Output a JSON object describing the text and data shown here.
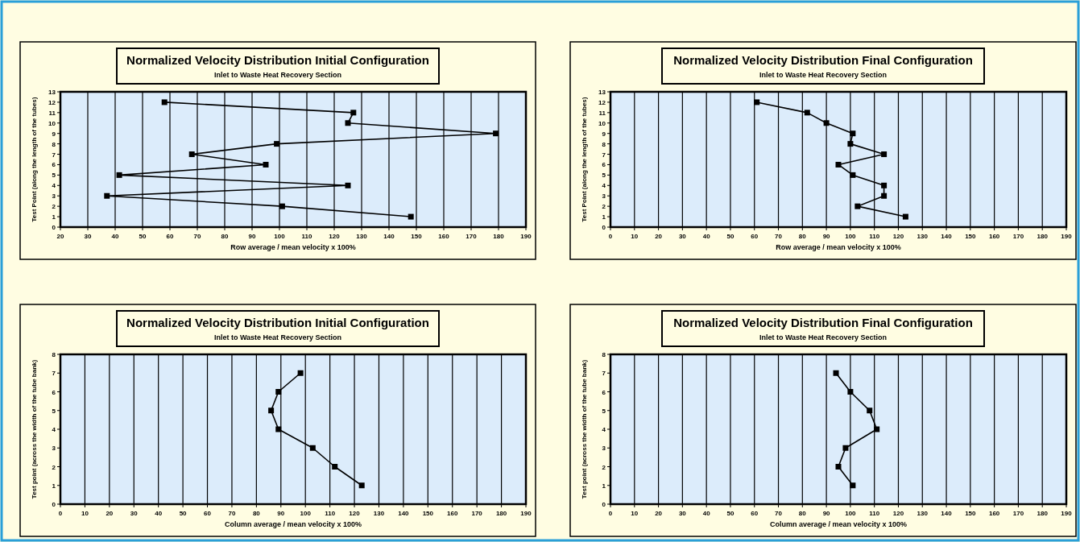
{
  "chart_data": [
    {
      "type": "line",
      "title": "Normalized Velocity Distribution Initial Configuration",
      "subtitle": "Inlet to Waste Heat Recovery Section",
      "xlabel": "Row average / mean velocity x 100%",
      "ylabel": "Test Point (along the length of the tubes)",
      "x": [
        58,
        127,
        125,
        179,
        99,
        68,
        95,
        41.5,
        125,
        37,
        101,
        148
      ],
      "series": [
        {
          "color": "#000000",
          "values": [
            12,
            11,
            10,
            9,
            8,
            7,
            6,
            5,
            4,
            3,
            2,
            1
          ]
        }
      ],
      "xlim": [
        20,
        190
      ],
      "xticks": [
        20,
        30,
        40,
        50,
        60,
        70,
        80,
        90,
        100,
        110,
        120,
        130,
        140,
        150,
        160,
        170,
        180,
        190
      ],
      "ylim": [
        0,
        13
      ],
      "yticks": [
        0,
        1,
        2,
        3,
        4,
        5,
        6,
        7,
        8,
        9,
        10,
        11,
        12,
        13
      ],
      "grid": "x",
      "marker": "square"
    },
    {
      "type": "line",
      "title": "Normalized Velocity Distribution Final Configuration",
      "subtitle": "Inlet to Waste Heat Recovery Section",
      "xlabel": "Row average / mean velocity x 100%",
      "ylabel": "Test Point (along the length of the tubes)",
      "x": [
        61,
        82,
        90,
        101,
        100,
        114,
        95,
        101,
        114,
        114,
        103,
        123
      ],
      "series": [
        {
          "color": "#000000",
          "values": [
            12,
            11,
            10,
            9,
            8,
            7,
            6,
            5,
            4,
            3,
            2,
            1
          ]
        }
      ],
      "xlim": [
        0,
        190
      ],
      "xticks": [
        0,
        10,
        20,
        30,
        40,
        50,
        60,
        70,
        80,
        90,
        100,
        110,
        120,
        130,
        140,
        150,
        160,
        170,
        180,
        190
      ],
      "ylim": [
        0,
        13
      ],
      "yticks": [
        0,
        1,
        2,
        3,
        4,
        5,
        6,
        7,
        8,
        9,
        10,
        11,
        12,
        13
      ],
      "grid": "x",
      "marker": "square"
    },
    {
      "type": "line",
      "title": "Normalized Velocity Distribution Initial Configuration",
      "subtitle": "Inlet to Waste Heat Recovery Section",
      "xlabel": "Column average / mean velocity x 100%",
      "ylabel": "Test point (across the width of the tube bank)",
      "x": [
        98,
        89,
        86,
        89,
        103,
        112,
        123
      ],
      "series": [
        {
          "color": "#000000",
          "values": [
            7,
            6,
            5,
            4,
            3,
            2,
            1
          ]
        }
      ],
      "xlim": [
        0,
        190
      ],
      "xticks": [
        0,
        10,
        20,
        30,
        40,
        50,
        60,
        70,
        80,
        90,
        100,
        110,
        120,
        130,
        140,
        150,
        160,
        170,
        180,
        190
      ],
      "ylim": [
        0,
        8
      ],
      "yticks": [
        0,
        1,
        2,
        3,
        4,
        5,
        6,
        7,
        8
      ],
      "grid": "x",
      "marker": "square"
    },
    {
      "type": "line",
      "title": "Normalized Velocity Distribution Final Configuration",
      "subtitle": "Inlet to Waste Heat Recovery Section",
      "xlabel": "Column average / mean velocity x 100%",
      "ylabel": "Test point (across the width of the tube bank)",
      "x": [
        94,
        100,
        108,
        111,
        98,
        95,
        101
      ],
      "series": [
        {
          "color": "#000000",
          "values": [
            7,
            6,
            5,
            4,
            3,
            2,
            1
          ]
        }
      ],
      "xlim": [
        0,
        190
      ],
      "xticks": [
        0,
        10,
        20,
        30,
        40,
        50,
        60,
        70,
        80,
        90,
        100,
        110,
        120,
        130,
        140,
        150,
        160,
        170,
        180,
        190
      ],
      "ylim": [
        0,
        8
      ],
      "yticks": [
        0,
        1,
        2,
        3,
        4,
        5,
        6,
        7,
        8
      ],
      "grid": "x",
      "marker": "square"
    }
  ]
}
